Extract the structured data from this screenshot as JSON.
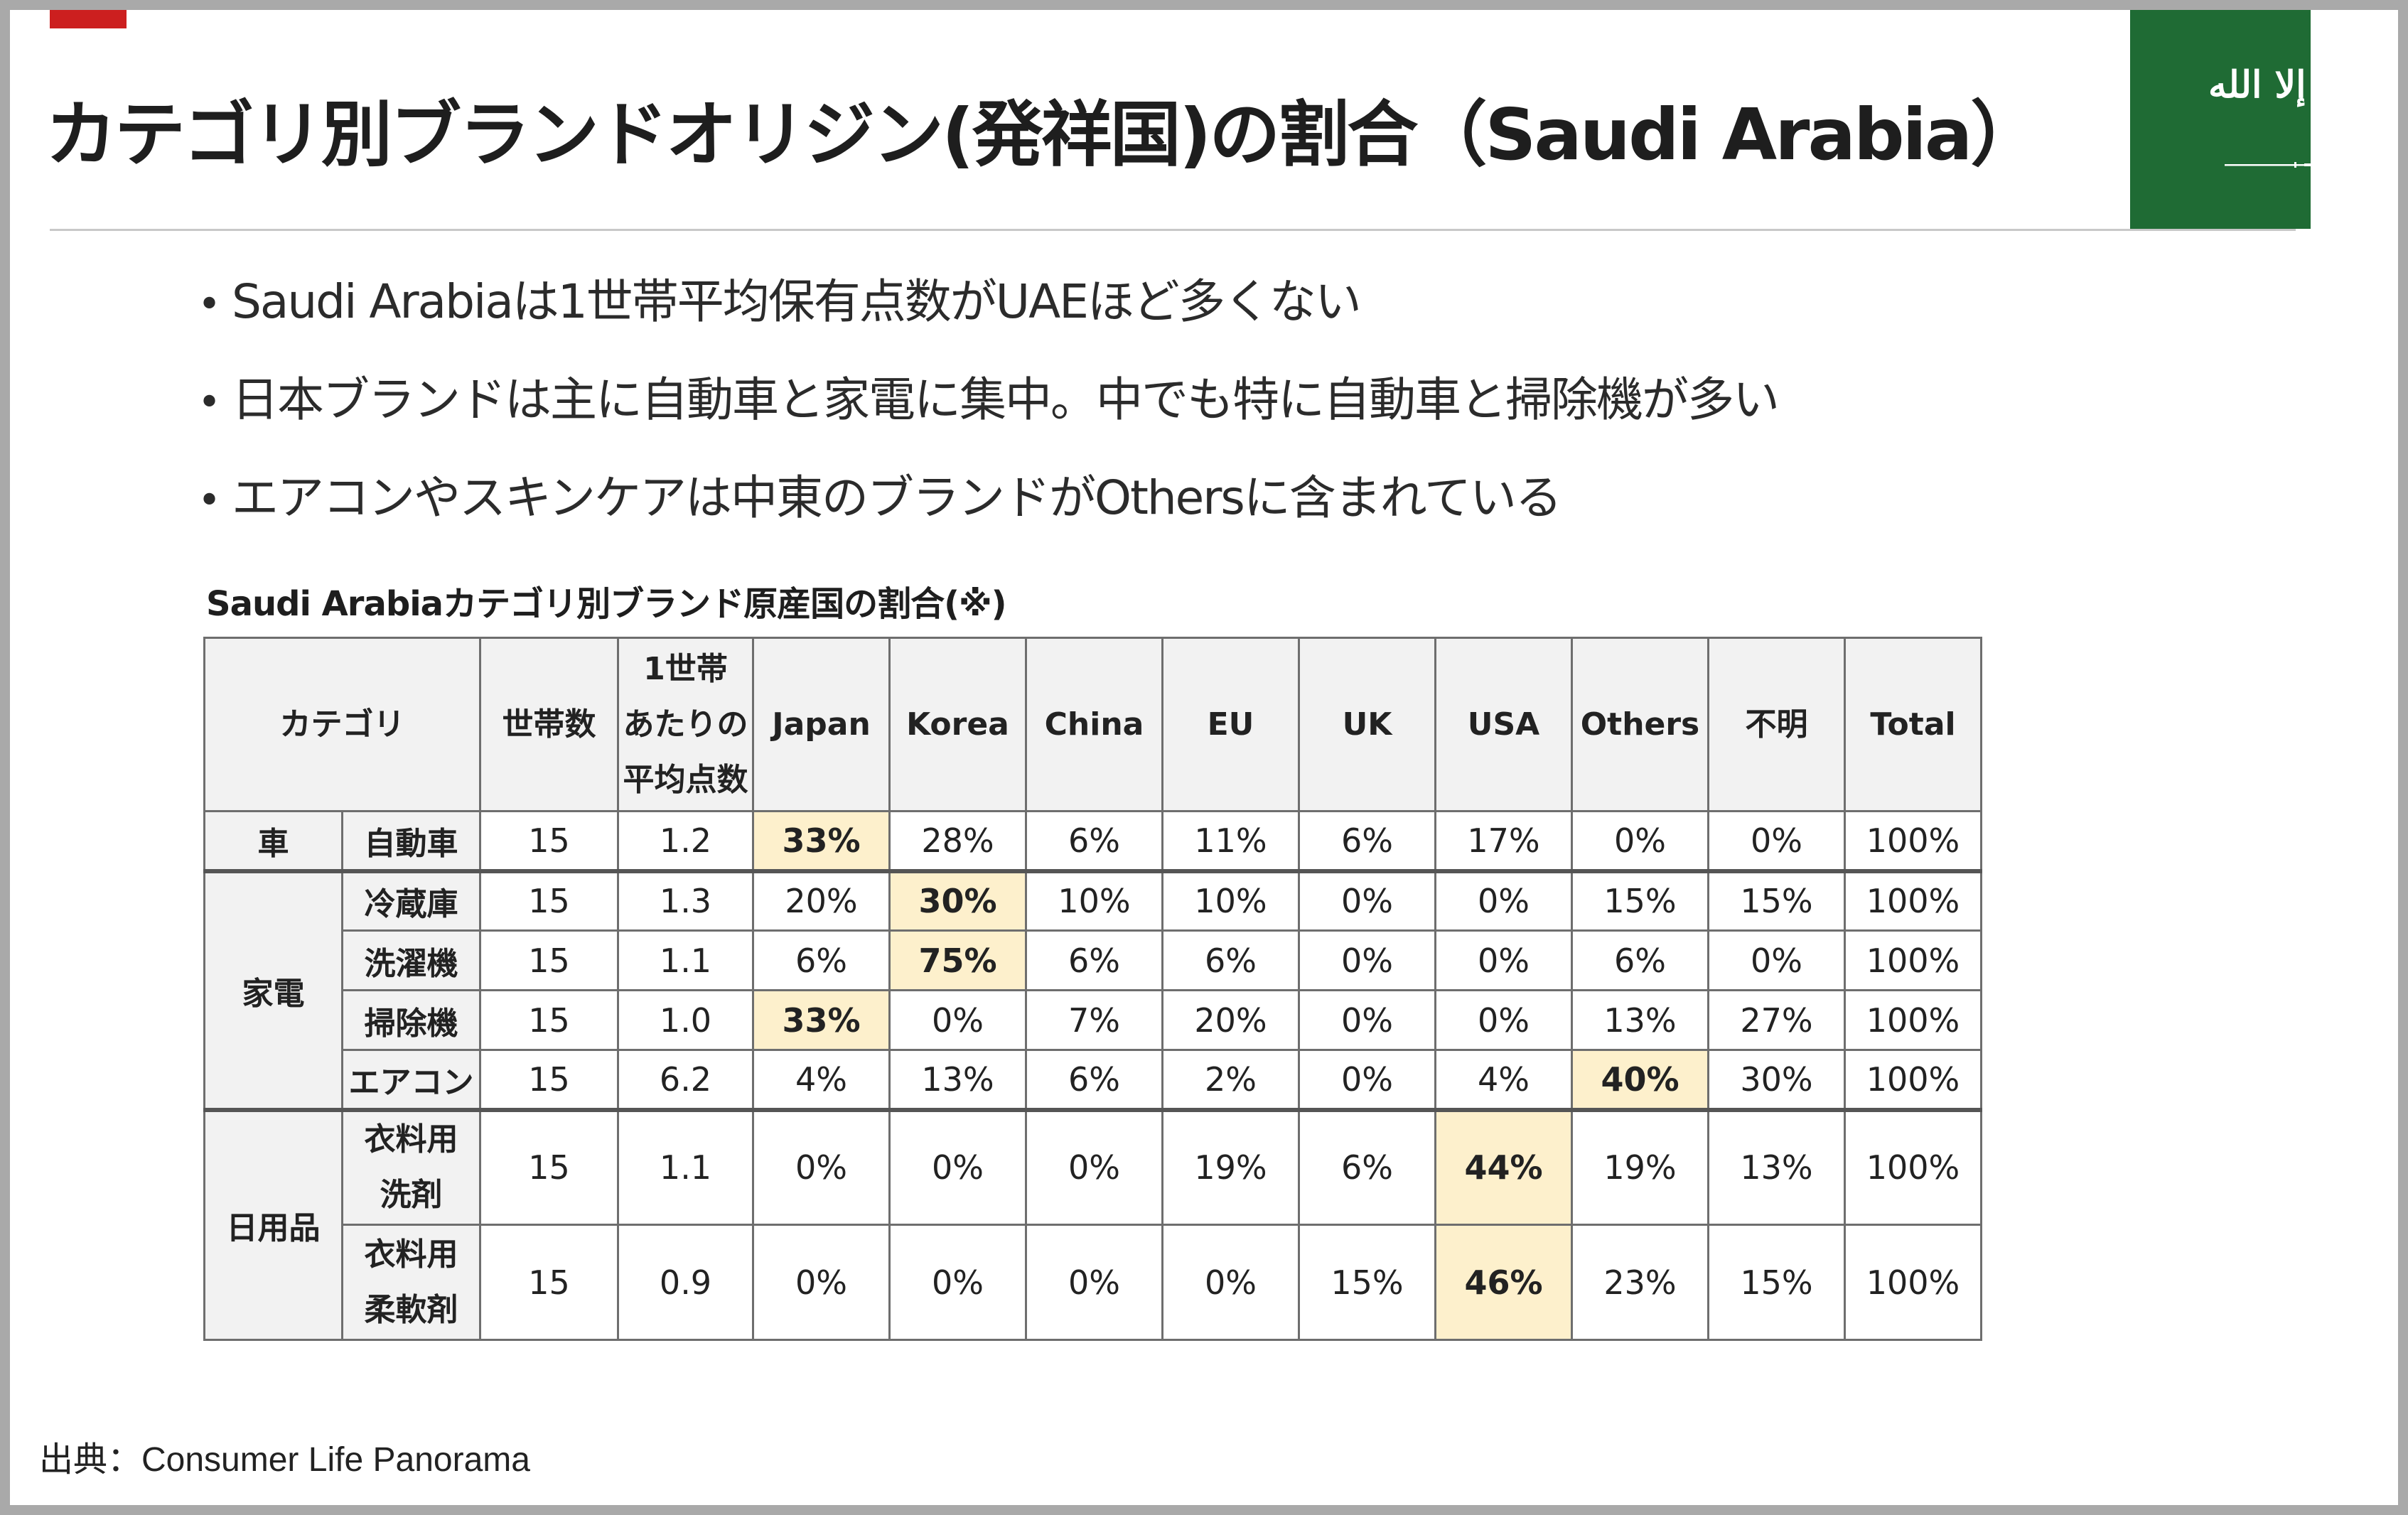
{
  "title": "カテゴリ別ブランドオリジン(発祥国)の割合（Saudi Arabia）",
  "flag": {
    "name": "Saudi Arabia flag",
    "green": "#1f6b34",
    "script_text": "لا إله إلا الله"
  },
  "bullets": [
    "Saudi Arabiaは1世帯平均保有点数がUAEほど多くない",
    "日本ブランドは主に自動車と家電に集中。中でも特に自動車と掃除機が多い",
    "エアコンやスキンケアは中東のブランドがOthersに含まれている"
  ],
  "table": {
    "caption": "Saudi Arabiaカテゴリ別ブランド原産国の割合(※)",
    "headers": {
      "category": "カテゴリ",
      "households": "世帯数",
      "avg_line1": "1世帯",
      "avg_line2": "あたりの",
      "avg_line3": "平均点数",
      "japan": "Japan",
      "korea": "Korea",
      "china": "China",
      "eu": "EU",
      "uk": "UK",
      "usa": "USA",
      "others": "Others",
      "unknown": "不明",
      "total": "Total"
    },
    "groups": {
      "car": "車",
      "appliance": "家電",
      "daily": "日用品"
    },
    "rows": [
      {
        "sub": "自動車",
        "sub2": "",
        "households": "15",
        "avg": "1.2",
        "japan": "33%",
        "korea": "28%",
        "china": "6%",
        "eu": "11%",
        "uk": "6%",
        "usa": "17%",
        "others": "0%",
        "unknown": "0%",
        "total": "100%"
      },
      {
        "sub": "冷蔵庫",
        "sub2": "",
        "households": "15",
        "avg": "1.3",
        "japan": "20%",
        "korea": "30%",
        "china": "10%",
        "eu": "10%",
        "uk": "0%",
        "usa": "0%",
        "others": "15%",
        "unknown": "15%",
        "total": "100%"
      },
      {
        "sub": "洗濯機",
        "sub2": "",
        "households": "15",
        "avg": "1.1",
        "japan": "6%",
        "korea": "75%",
        "china": "6%",
        "eu": "6%",
        "uk": "0%",
        "usa": "0%",
        "others": "6%",
        "unknown": "0%",
        "total": "100%"
      },
      {
        "sub": "掃除機",
        "sub2": "",
        "households": "15",
        "avg": "1.0",
        "japan": "33%",
        "korea": "0%",
        "china": "7%",
        "eu": "20%",
        "uk": "0%",
        "usa": "0%",
        "others": "13%",
        "unknown": "27%",
        "total": "100%"
      },
      {
        "sub": "エアコン",
        "sub2": "",
        "households": "15",
        "avg": "6.2",
        "japan": "4%",
        "korea": "13%",
        "china": "6%",
        "eu": "2%",
        "uk": "0%",
        "usa": "4%",
        "others": "40%",
        "unknown": "30%",
        "total": "100%"
      },
      {
        "sub": "衣料用",
        "sub2": "洗剤",
        "households": "15",
        "avg": "1.1",
        "japan": "0%",
        "korea": "0%",
        "china": "0%",
        "eu": "19%",
        "uk": "6%",
        "usa": "44%",
        "others": "19%",
        "unknown": "13%",
        "total": "100%"
      },
      {
        "sub": "衣料用",
        "sub2": "柔軟剤",
        "households": "15",
        "avg": "0.9",
        "japan": "0%",
        "korea": "0%",
        "china": "0%",
        "eu": "0%",
        "uk": "15%",
        "usa": "46%",
        "others": "23%",
        "unknown": "15%",
        "total": "100%"
      }
    ],
    "highlight_color": "#fdf0cc"
  },
  "source": "出典：Consumer Life Panorama"
}
